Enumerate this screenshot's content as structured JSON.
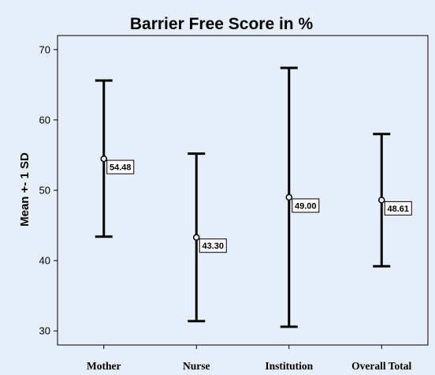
{
  "chart_data": {
    "type": "errorbar",
    "title": "Barrier Free Score in %",
    "xlabel": "",
    "ylabel": "Mean +- 1 SD",
    "ylim": [
      28,
      72
    ],
    "yticks": [
      30,
      40,
      50,
      60,
      70
    ],
    "grid": false,
    "categories": [
      "Mother",
      "Nurse",
      "Institution",
      "Overall Total"
    ],
    "means": [
      54.48,
      43.3,
      49.0,
      48.61
    ],
    "labels": [
      "54.48",
      "43.30",
      "49.00",
      "48.61"
    ],
    "upper": [
      65.6,
      55.2,
      67.4,
      58.0
    ],
    "lower": [
      43.4,
      31.4,
      30.6,
      39.2
    ],
    "colors": {
      "background": "#e6eef9",
      "plot_area": "#e6eef9",
      "ink": "#000000"
    }
  }
}
